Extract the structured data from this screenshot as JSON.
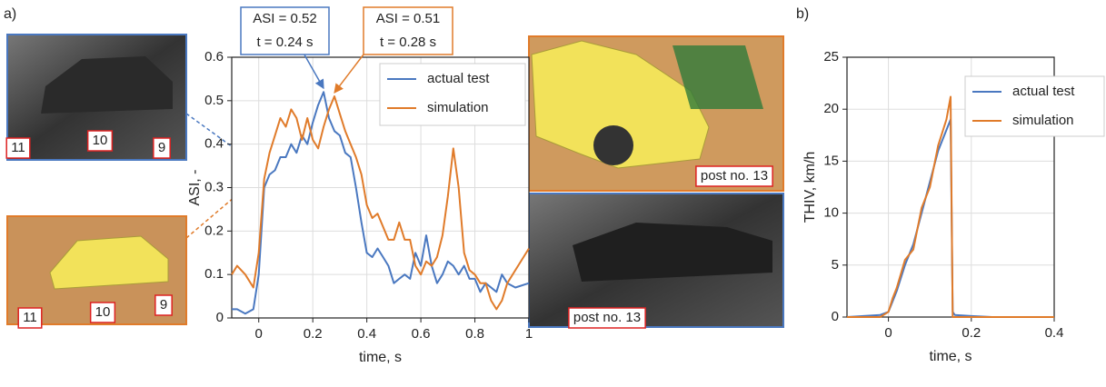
{
  "chart_data": [
    {
      "type": "line",
      "panel_label": "a)",
      "xlabel": "time, s",
      "ylabel": "ASI, -",
      "xlim": [
        -0.1,
        1
      ],
      "ylim": [
        0,
        0.6
      ],
      "xticks": [
        0,
        0.2,
        0.4,
        0.6,
        0.8,
        1
      ],
      "yticks": [
        0,
        0.1,
        0.2,
        0.3,
        0.4,
        0.5,
        0.6
      ],
      "grid": true,
      "legend": "upper right",
      "x": [
        -0.1,
        -0.08,
        -0.05,
        -0.02,
        0,
        0.02,
        0.04,
        0.06,
        0.08,
        0.1,
        0.12,
        0.14,
        0.16,
        0.18,
        0.2,
        0.22,
        0.24,
        0.26,
        0.28,
        0.3,
        0.32,
        0.34,
        0.36,
        0.38,
        0.4,
        0.42,
        0.44,
        0.46,
        0.48,
        0.5,
        0.52,
        0.54,
        0.56,
        0.58,
        0.6,
        0.62,
        0.64,
        0.66,
        0.68,
        0.7,
        0.72,
        0.74,
        0.76,
        0.78,
        0.8,
        0.82,
        0.84,
        0.86,
        0.88,
        0.9,
        0.92,
        0.95,
        1
      ],
      "series": [
        {
          "name": "actual test",
          "color": "#4a78c0",
          "values": [
            0.02,
            0.02,
            0.01,
            0.02,
            0.1,
            0.3,
            0.33,
            0.34,
            0.37,
            0.37,
            0.4,
            0.38,
            0.42,
            0.4,
            0.45,
            0.49,
            0.52,
            0.46,
            0.43,
            0.42,
            0.38,
            0.37,
            0.3,
            0.22,
            0.15,
            0.14,
            0.16,
            0.14,
            0.12,
            0.08,
            0.09,
            0.1,
            0.09,
            0.15,
            0.12,
            0.19,
            0.12,
            0.08,
            0.1,
            0.13,
            0.12,
            0.1,
            0.12,
            0.09,
            0.09,
            0.06,
            0.08,
            0.07,
            0.06,
            0.1,
            0.08,
            0.07,
            0.08
          ]
        },
        {
          "name": "simulation",
          "color": "#e07b2a",
          "values": [
            0.1,
            0.12,
            0.1,
            0.07,
            0.15,
            0.32,
            0.38,
            0.42,
            0.46,
            0.44,
            0.48,
            0.46,
            0.41,
            0.46,
            0.41,
            0.39,
            0.44,
            0.48,
            0.51,
            0.47,
            0.43,
            0.4,
            0.37,
            0.33,
            0.26,
            0.23,
            0.24,
            0.21,
            0.18,
            0.18,
            0.22,
            0.18,
            0.18,
            0.12,
            0.1,
            0.13,
            0.12,
            0.14,
            0.19,
            0.28,
            0.39,
            0.3,
            0.15,
            0.11,
            0.1,
            0.08,
            0.08,
            0.04,
            0.02,
            0.04,
            0.08,
            0.11,
            0.16
          ]
        }
      ],
      "annotations": [
        {
          "lines": [
            "ASI = 0.52",
            "t = 0.24 s"
          ],
          "x": 0.24,
          "y": 0.52,
          "color": "#4a78c0"
        },
        {
          "lines": [
            "ASI = 0.51",
            "t = 0.28 s"
          ],
          "x": 0.28,
          "y": 0.51,
          "color": "#e07b2a"
        }
      ]
    },
    {
      "type": "line",
      "panel_label": "b)",
      "xlabel": "time, s",
      "ylabel": "THIV, km/h",
      "xlim": [
        -0.1,
        0.4
      ],
      "ylim": [
        0,
        25
      ],
      "xticks": [
        0,
        0.2,
        0.4
      ],
      "yticks": [
        0,
        5,
        10,
        15,
        20,
        25
      ],
      "grid": true,
      "legend": "upper right",
      "x": [
        -0.1,
        -0.02,
        0,
        0.01,
        0.02,
        0.04,
        0.06,
        0.08,
        0.1,
        0.12,
        0.14,
        0.15,
        0.155,
        0.16,
        0.2,
        0.25,
        0.3,
        0.4
      ],
      "series": [
        {
          "name": "actual test",
          "color": "#4a78c0",
          "values": [
            0,
            0.2,
            0.5,
            1.5,
            2.5,
            5,
            7,
            10,
            13,
            16,
            18,
            19,
            0.5,
            0.2,
            0.1,
            0,
            null,
            null
          ]
        },
        {
          "name": "simulation",
          "color": "#e07b2a",
          "values": [
            0,
            0,
            0.5,
            1.8,
            2.8,
            5.5,
            6.5,
            10.5,
            12.5,
            16.5,
            19,
            21.2,
            0,
            0,
            0,
            0,
            0,
            0
          ]
        }
      ]
    }
  ],
  "photos": [
    {
      "labels": [
        "11",
        "10",
        "9"
      ]
    },
    {
      "labels": [
        "11",
        "10",
        "9"
      ]
    },
    {
      "labels": [
        "post no. 13"
      ]
    },
    {
      "labels": [
        "post no. 13"
      ]
    }
  ]
}
